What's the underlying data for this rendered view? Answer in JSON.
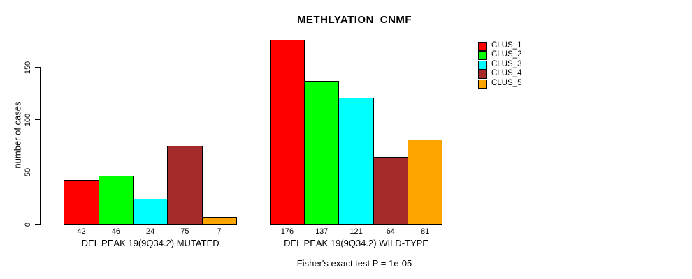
{
  "title": "METHLYATION_CNMF",
  "chart_data": {
    "type": "bar",
    "title": "METHLYATION_CNMF",
    "xlabel": "",
    "ylabel": "number of cases",
    "yticks": [
      0,
      50,
      100,
      150
    ],
    "ylim": [
      0,
      180
    ],
    "grid": false,
    "legend_position": "top-right",
    "categories": [
      "DEL PEAK 19(9Q34.2) MUTATED",
      "DEL PEAK 19(9Q34.2) WILD-TYPE"
    ],
    "series": [
      {
        "name": "CLUS_1",
        "color": "#FF0000",
        "values": [
          42,
          176
        ]
      },
      {
        "name": "CLUS_2",
        "color": "#00FF00",
        "values": [
          46,
          137
        ]
      },
      {
        "name": "CLUS_3",
        "color": "#00FFFF",
        "values": [
          24,
          121
        ]
      },
      {
        "name": "CLUS_4",
        "color": "#A52A2A",
        "values": [
          75,
          64
        ]
      },
      {
        "name": "CLUS_5",
        "color": "#FFA500",
        "values": [
          7,
          81
        ]
      }
    ],
    "bar_value_labels": [
      [
        42,
        46,
        24,
        75,
        7
      ],
      [
        176,
        137,
        121,
        64,
        81
      ]
    ],
    "annotation": "Fisher's exact test P = 1e-05"
  }
}
